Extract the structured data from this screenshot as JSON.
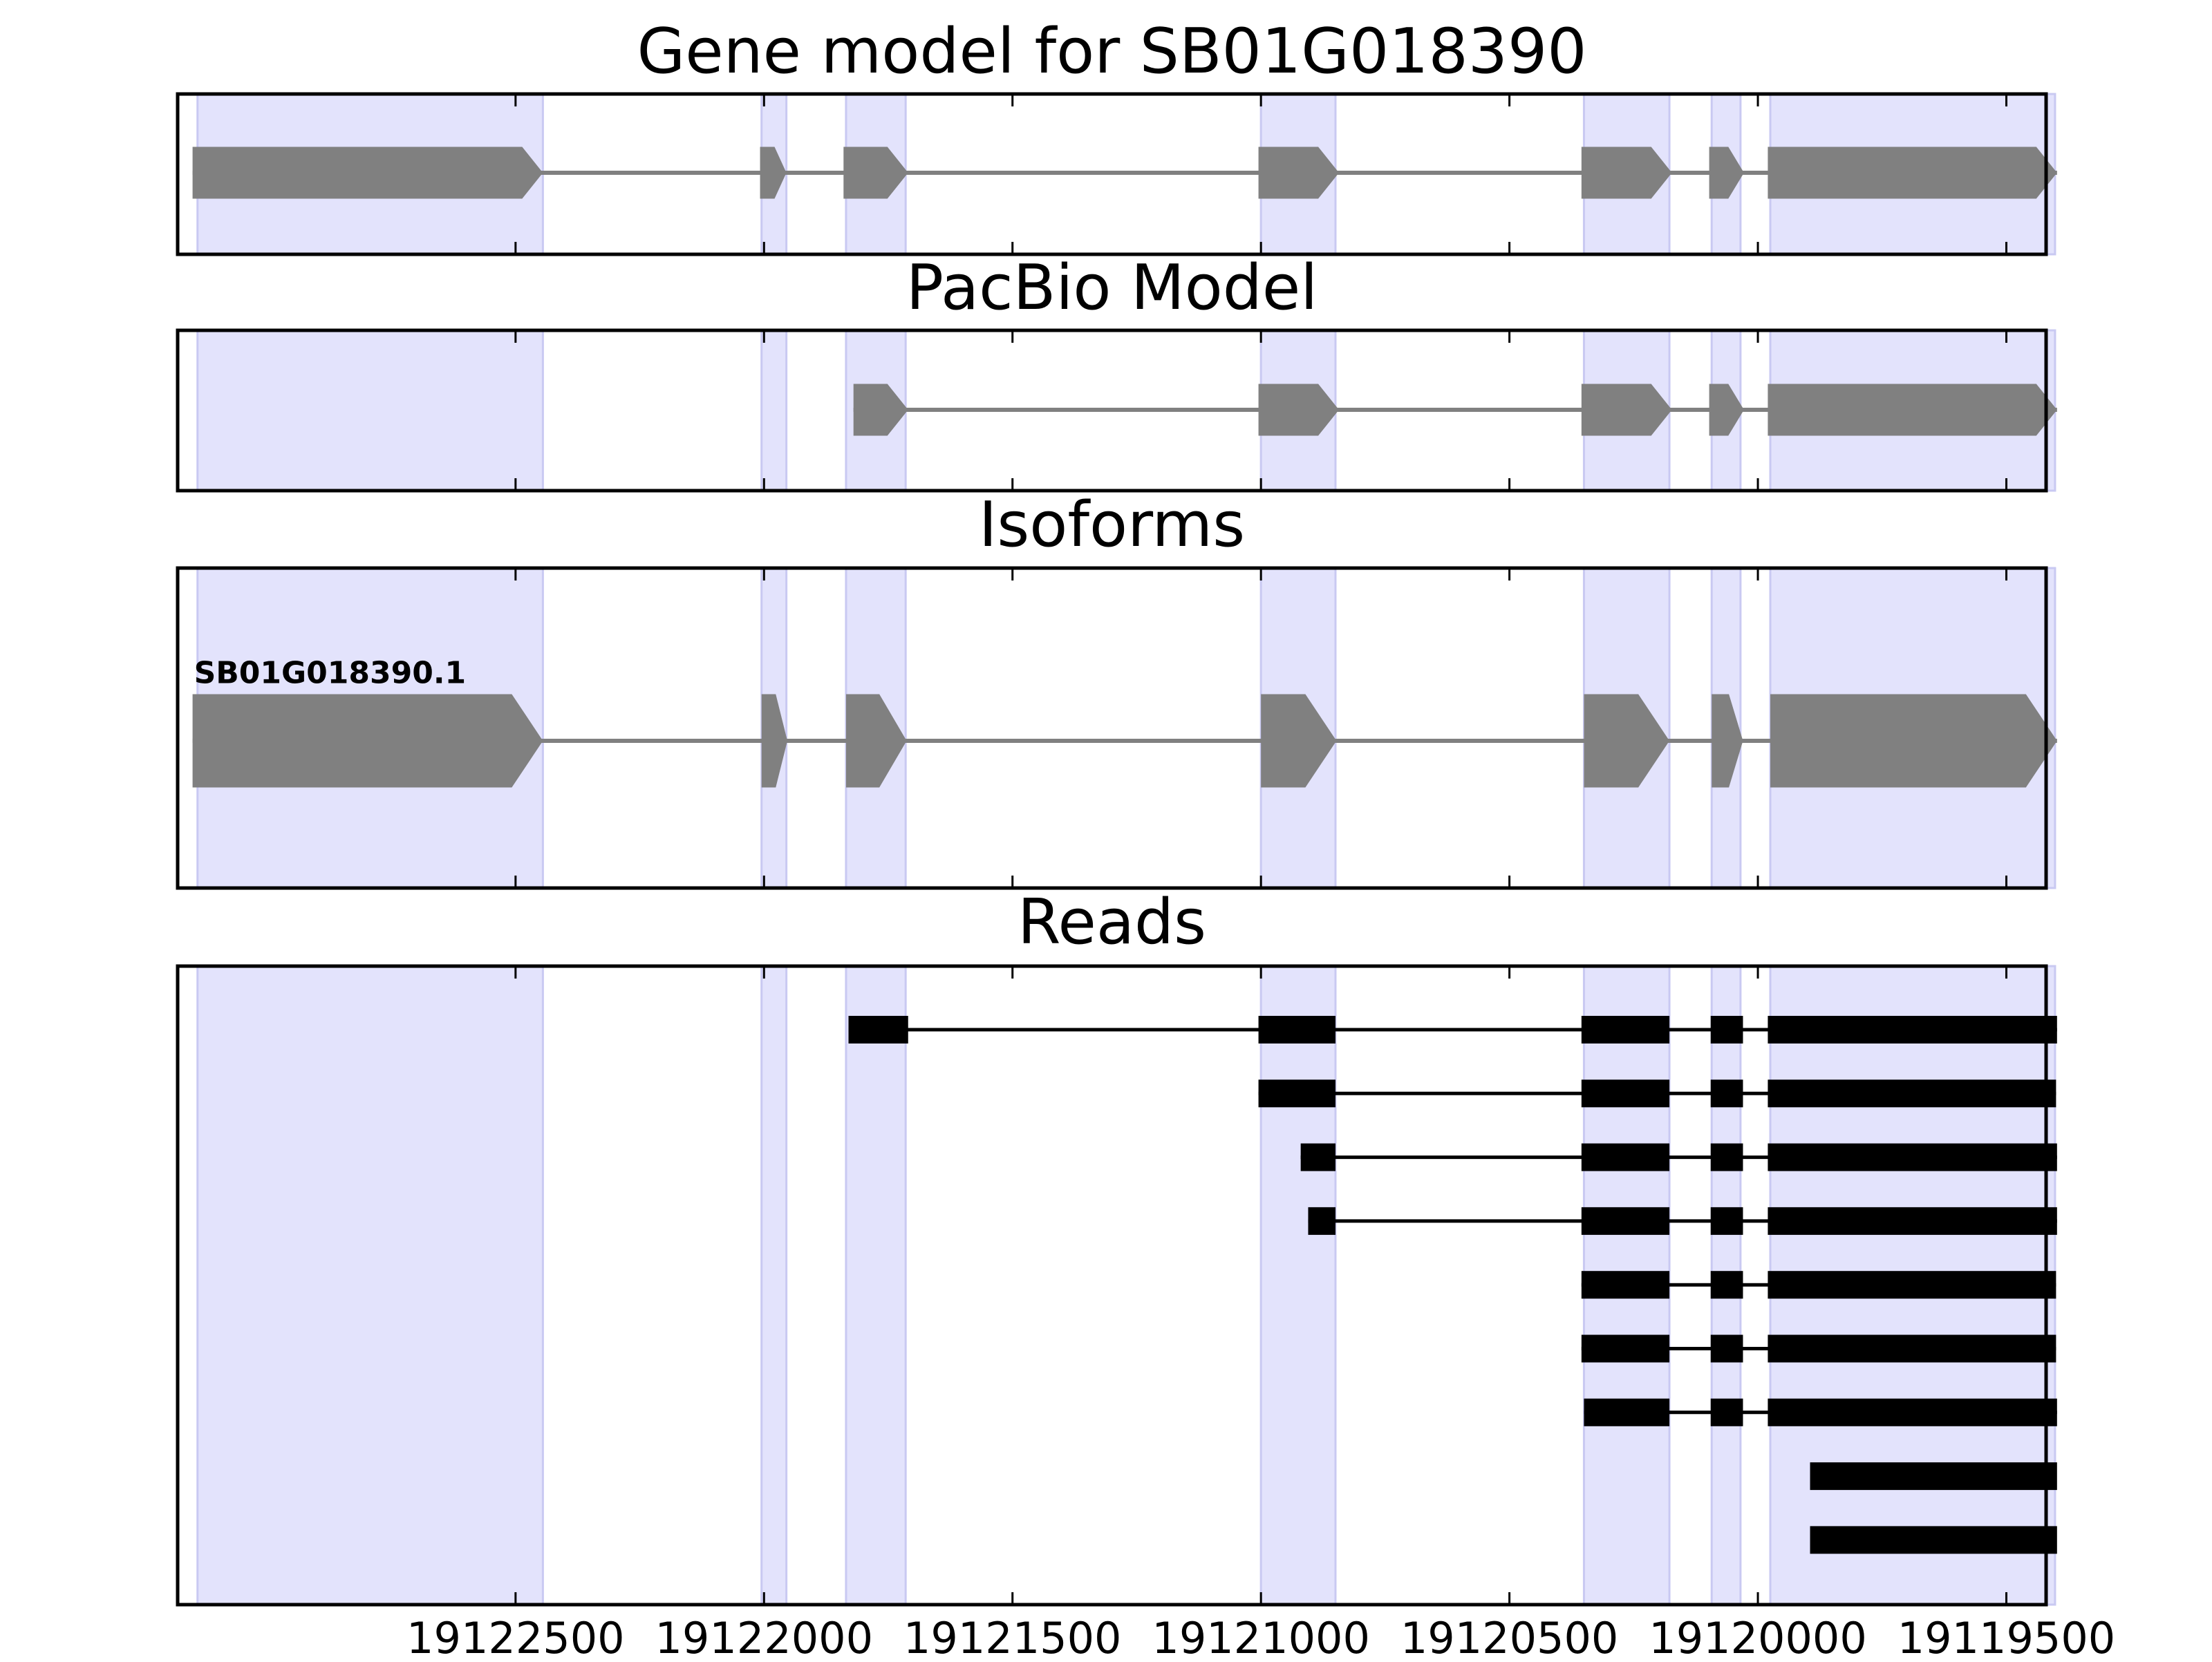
{
  "chart_data": {
    "type": "gene-structure",
    "x_axis": {
      "reversed": true,
      "xlim": [
        19123180,
        19119420
      ],
      "ticks": [
        19122500,
        19122000,
        19121500,
        19121000,
        19120500,
        19120000,
        19119500
      ],
      "tick_labels": [
        "19122500",
        "19122000",
        "19121500",
        "19121000",
        "19120500",
        "19120000",
        "19119500"
      ]
    },
    "colors": {
      "exon_shading": "#e3e3fc",
      "exon_shading_edge": "#c9c9f2",
      "model_fill": "#808080",
      "read_fill": "#000000",
      "frame": "#000000"
    },
    "exon_regions": [
      [
        19123140,
        19122445
      ],
      [
        19122005,
        19121955
      ],
      [
        19121835,
        19121715
      ],
      [
        19121000,
        19120850
      ],
      [
        19120350,
        19120178
      ],
      [
        19120093,
        19120035
      ],
      [
        19119975,
        19119402
      ]
    ],
    "panels": [
      {
        "title": "Gene model for SB01G018390",
        "kind": "model",
        "tracks": [
          {
            "label": "",
            "exons": [
              [
                19123150,
                19122445
              ],
              [
                19122008,
                19121955
              ],
              [
                19121840,
                19121710
              ],
              [
                19121005,
                19120843
              ],
              [
                19120355,
                19120173
              ],
              [
                19120098,
                19120028
              ],
              [
                19119980,
                19119398
              ]
            ]
          }
        ]
      },
      {
        "title": "PacBio Model",
        "kind": "model",
        "tracks": [
          {
            "label": "",
            "exons": [
              [
                19121820,
                19121710
              ],
              [
                19121005,
                19120843
              ],
              [
                19120355,
                19120173
              ],
              [
                19120098,
                19120028
              ],
              [
                19119980,
                19119398
              ]
            ]
          }
        ]
      },
      {
        "title": "Isoforms",
        "kind": "model",
        "tracks": [
          {
            "label": "SB01G018390.1",
            "exons": [
              [
                19123150,
                19122445
              ],
              [
                19122005,
                19121953
              ],
              [
                19121835,
                19121713
              ],
              [
                19121000,
                19120848
              ],
              [
                19120350,
                19120178
              ],
              [
                19120093,
                19120030
              ],
              [
                19119975,
                19119398
              ]
            ]
          }
        ]
      },
      {
        "title": "Reads",
        "kind": "reads",
        "tracks": [
          {
            "label": "",
            "exons": [
              [
                19121830,
                19121710
              ],
              [
                19121005,
                19120850
              ],
              [
                19120355,
                19120178
              ],
              [
                19120095,
                19120030
              ],
              [
                19119980,
                19119398
              ]
            ]
          },
          {
            "label": "",
            "exons": [
              [
                19121005,
                19120850
              ],
              [
                19120355,
                19120178
              ],
              [
                19120095,
                19120030
              ],
              [
                19119980,
                19119400
              ]
            ]
          },
          {
            "label": "",
            "exons": [
              [
                19120920,
                19120850
              ],
              [
                19120355,
                19120178
              ],
              [
                19120095,
                19120030
              ],
              [
                19119980,
                19119398
              ]
            ]
          },
          {
            "label": "",
            "exons": [
              [
                19120905,
                19120850
              ],
              [
                19120355,
                19120178
              ],
              [
                19120095,
                19120030
              ],
              [
                19119980,
                19119398
              ]
            ]
          },
          {
            "label": "",
            "exons": [
              [
                19120355,
                19120178
              ],
              [
                19120095,
                19120030
              ],
              [
                19119980,
                19119400
              ]
            ]
          },
          {
            "label": "",
            "exons": [
              [
                19120355,
                19120178
              ],
              [
                19120095,
                19120030
              ],
              [
                19119980,
                19119400
              ]
            ]
          },
          {
            "label": "",
            "exons": [
              [
                19120350,
                19120178
              ],
              [
                19120095,
                19120030
              ],
              [
                19119980,
                19119398
              ]
            ]
          },
          {
            "label": "",
            "exons": [
              [
                19119895,
                19119398
              ]
            ]
          },
          {
            "label": "",
            "exons": [
              [
                19119895,
                19119398
              ]
            ]
          }
        ]
      }
    ]
  }
}
